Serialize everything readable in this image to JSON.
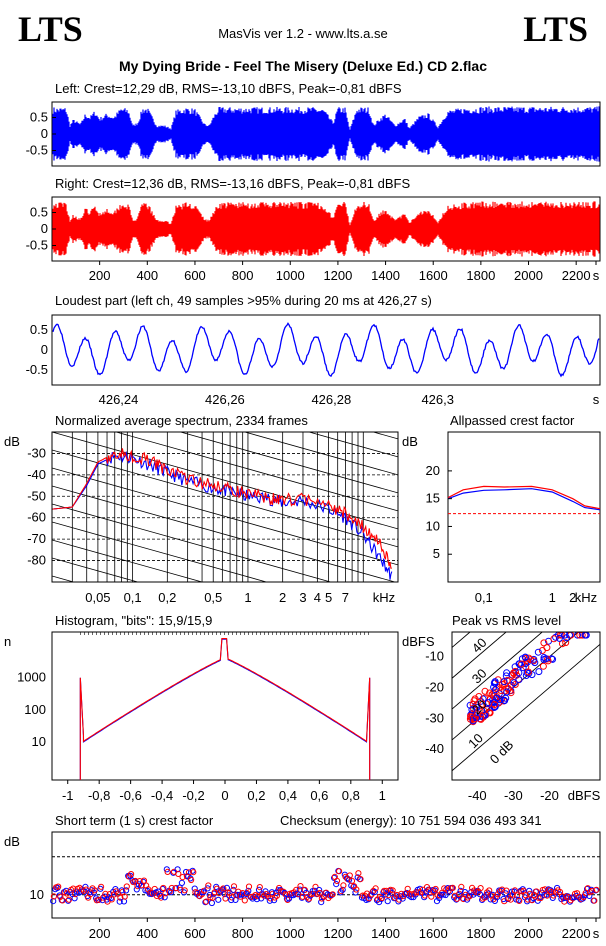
{
  "header": {
    "logo_left": "LTS",
    "logo_right": "LTS",
    "version": "MasVis ver 1.2 - www.lts.a.se",
    "title": "My Dying Bride - Feel The Misery (Deluxe Ed.) CD 2.flac"
  },
  "colors": {
    "left": "#0000ff",
    "right": "#ff0000",
    "grid": "#000000"
  },
  "chart_data": [
    {
      "id": "left-waveform",
      "type": "area",
      "title": "Left: Crest=12,29 dB, RMS=-13,10 dBFS, Peak=-0,81 dBFS",
      "yticks": [
        "0.5",
        "0",
        "-0.5"
      ],
      "ylim": [
        -1,
        1
      ],
      "xlim": [
        0,
        2300
      ],
      "envelope": [
        [
          0,
          0.9
        ],
        [
          60,
          0.9
        ],
        [
          75,
          0.3
        ],
        [
          90,
          0.5
        ],
        [
          120,
          0.35
        ],
        [
          140,
          0.7
        ],
        [
          160,
          0.6
        ],
        [
          180,
          0.8
        ],
        [
          200,
          0.55
        ],
        [
          230,
          0.7
        ],
        [
          260,
          0.6
        ],
        [
          290,
          0.9
        ],
        [
          320,
          0.85
        ],
        [
          340,
          0.3
        ],
        [
          360,
          0.4
        ],
        [
          380,
          0.9
        ],
        [
          400,
          0.9
        ],
        [
          420,
          0.6
        ],
        [
          440,
          0.3
        ],
        [
          470,
          0.3
        ],
        [
          500,
          0.2
        ],
        [
          520,
          0.8
        ],
        [
          560,
          0.9
        ],
        [
          600,
          0.85
        ],
        [
          640,
          0.35
        ],
        [
          660,
          0.3
        ],
        [
          680,
          0.65
        ],
        [
          700,
          0.9
        ],
        [
          720,
          0.9
        ],
        [
          760,
          0.9
        ],
        [
          800,
          0.9
        ],
        [
          840,
          0.9
        ],
        [
          880,
          0.9
        ],
        [
          920,
          0.9
        ],
        [
          980,
          0.9
        ],
        [
          1040,
          0.9
        ],
        [
          1100,
          0.9
        ],
        [
          1140,
          0.85
        ],
        [
          1180,
          0.4
        ],
        [
          1200,
          0.9
        ],
        [
          1230,
          0.9
        ],
        [
          1250,
          0.15
        ],
        [
          1280,
          0.9
        ],
        [
          1330,
          0.9
        ],
        [
          1350,
          0.3
        ],
        [
          1370,
          0.5
        ],
        [
          1400,
          0.7
        ],
        [
          1440,
          0.3
        ],
        [
          1480,
          0.55
        ],
        [
          1500,
          0.2
        ],
        [
          1540,
          0.6
        ],
        [
          1580,
          0.7
        ],
        [
          1620,
          0.25
        ],
        [
          1660,
          0.8
        ],
        [
          1700,
          0.85
        ],
        [
          1740,
          0.9
        ],
        [
          1780,
          0.9
        ],
        [
          1800,
          0.92
        ],
        [
          2300,
          0.92
        ]
      ]
    },
    {
      "id": "right-waveform",
      "type": "area",
      "title": "Right: Crest=12,36 dB, RMS=-13,16 dBFS, Peak=-0,81 dBFS",
      "yticks": [
        "0.5",
        "0",
        "-0.5"
      ],
      "ylim": [
        -1,
        1
      ],
      "xlim": [
        0,
        2300
      ],
      "xticks": [
        "200",
        "400",
        "600",
        "800",
        "1000",
        "1200",
        "1400",
        "1600",
        "1800",
        "2000",
        "2200",
        "s"
      ]
    },
    {
      "id": "loudest-part",
      "type": "line",
      "title": "Loudest part (left  ch, 49 samples >95% during 20 ms at 426,27 s)",
      "yticks": [
        "0.5",
        "0",
        "-0.5"
      ],
      "ylim": [
        -1,
        1
      ],
      "xticks": [
        "426,24",
        "426,26",
        "426,28",
        "426,3",
        "s"
      ],
      "xlim": [
        426.2275,
        426.3305
      ]
    },
    {
      "id": "spectrum",
      "type": "line",
      "title": "Normalized average spectrum, 2334 frames",
      "ylabel": "dB",
      "yticks": [
        "-30",
        "-40",
        "-50",
        "-60",
        "-70",
        "-80"
      ],
      "ylim": [
        -90,
        -20
      ],
      "xticks": [
        "0,05",
        "0,1",
        "0,2",
        "0,5",
        "1",
        "2",
        "3",
        "4",
        "5",
        "7",
        "kHz"
      ],
      "xlim": [
        0.02,
        20
      ],
      "series": [
        {
          "color": "#0000ff",
          "points": [
            [
              0.02,
              -56
            ],
            [
              0.03,
              -55
            ],
            [
              0.04,
              -45
            ],
            [
              0.05,
              -35
            ],
            [
              0.07,
              -31
            ],
            [
              0.1,
              -32
            ],
            [
              0.15,
              -36
            ],
            [
              0.2,
              -39
            ],
            [
              0.3,
              -43
            ],
            [
              0.5,
              -46
            ],
            [
              0.7,
              -48
            ],
            [
              1,
              -50
            ],
            [
              1.5,
              -51
            ],
            [
              2,
              -53
            ],
            [
              3,
              -52
            ],
            [
              5,
              -56
            ],
            [
              7,
              -60
            ],
            [
              10,
              -68
            ],
            [
              14,
              -79
            ],
            [
              18,
              -88
            ]
          ]
        },
        {
          "color": "#ff0000",
          "points": [
            [
              0.02,
              -56
            ],
            [
              0.03,
              -55
            ],
            [
              0.04,
              -44
            ],
            [
              0.05,
              -34
            ],
            [
              0.07,
              -30
            ],
            [
              0.1,
              -31
            ],
            [
              0.15,
              -34
            ],
            [
              0.2,
              -38
            ],
            [
              0.3,
              -42
            ],
            [
              0.5,
              -45
            ],
            [
              0.7,
              -47
            ],
            [
              1,
              -49
            ],
            [
              1.5,
              -51
            ],
            [
              2,
              -52
            ],
            [
              3,
              -51
            ],
            [
              5,
              -55
            ],
            [
              7,
              -58
            ],
            [
              10,
              -64
            ],
            [
              14,
              -72
            ],
            [
              18,
              -85
            ]
          ]
        }
      ]
    },
    {
      "id": "crest-factor",
      "type": "line",
      "title": "Allpassed crest factor",
      "ylabel": "dB",
      "yticks": [
        "20",
        "15",
        "10",
        "5"
      ],
      "ylim": [
        0,
        27
      ],
      "xticks": [
        "0,1",
        "1",
        "2",
        "kHz"
      ],
      "xlim": [
        0.03,
        5
      ],
      "reference": 12.3,
      "series": [
        {
          "color": "#0000ff",
          "points": [
            [
              0.03,
              15
            ],
            [
              0.05,
              16
            ],
            [
              0.1,
              16.5
            ],
            [
              0.2,
              16.6
            ],
            [
              0.5,
              16.8
            ],
            [
              1,
              16.2
            ],
            [
              2,
              14.5
            ],
            [
              3,
              13.4
            ],
            [
              5,
              13
            ]
          ]
        },
        {
          "color": "#ff0000",
          "points": [
            [
              0.03,
              15.2
            ],
            [
              0.05,
              16.6
            ],
            [
              0.1,
              17.2
            ],
            [
              0.2,
              17.1
            ],
            [
              0.5,
              17.2
            ],
            [
              1,
              16.6
            ],
            [
              2,
              15
            ],
            [
              3,
              13.7
            ],
            [
              5,
              13.2
            ]
          ]
        }
      ]
    },
    {
      "id": "histogram",
      "type": "line",
      "title": "Histogram, \"bits\": 15,9/15,9",
      "ylabel": "n",
      "yticks": [
        "1000",
        "100",
        "10"
      ],
      "xticks": [
        "-1",
        "-0,8",
        "-0,6",
        "-0,4",
        "-0,2",
        "0",
        "0,2",
        "0,4",
        "0,6",
        "0,8",
        "1"
      ],
      "xlim": [
        -1.1,
        1.1
      ]
    },
    {
      "id": "peak-vs-rms",
      "type": "scatter",
      "title": "Peak vs RMS level",
      "ylabel": "dBFS",
      "xlabel": "dBFS",
      "yticks": [
        "-10",
        "-20",
        "-30",
        "-40"
      ],
      "xticks": [
        "-40",
        "-30",
        "-20"
      ],
      "diagonals": [
        "40",
        "30",
        "20",
        "10",
        "0 dB"
      ],
      "xlim": [
        -47,
        -6
      ],
      "ylim": [
        -50,
        -2
      ]
    },
    {
      "id": "short-term-crest",
      "type": "scatter",
      "title": "Short term (1 s) crest factor",
      "checksum": "Checksum (energy):  10 751 594 036 493 341",
      "ylabel": "dB",
      "yticks": [
        "10"
      ],
      "xticks": [
        "200",
        "400",
        "600",
        "800",
        "1000",
        "1200",
        "1400",
        "1600",
        "1800",
        "2000",
        "2200",
        "s"
      ],
      "xlim": [
        0,
        2300
      ]
    }
  ]
}
